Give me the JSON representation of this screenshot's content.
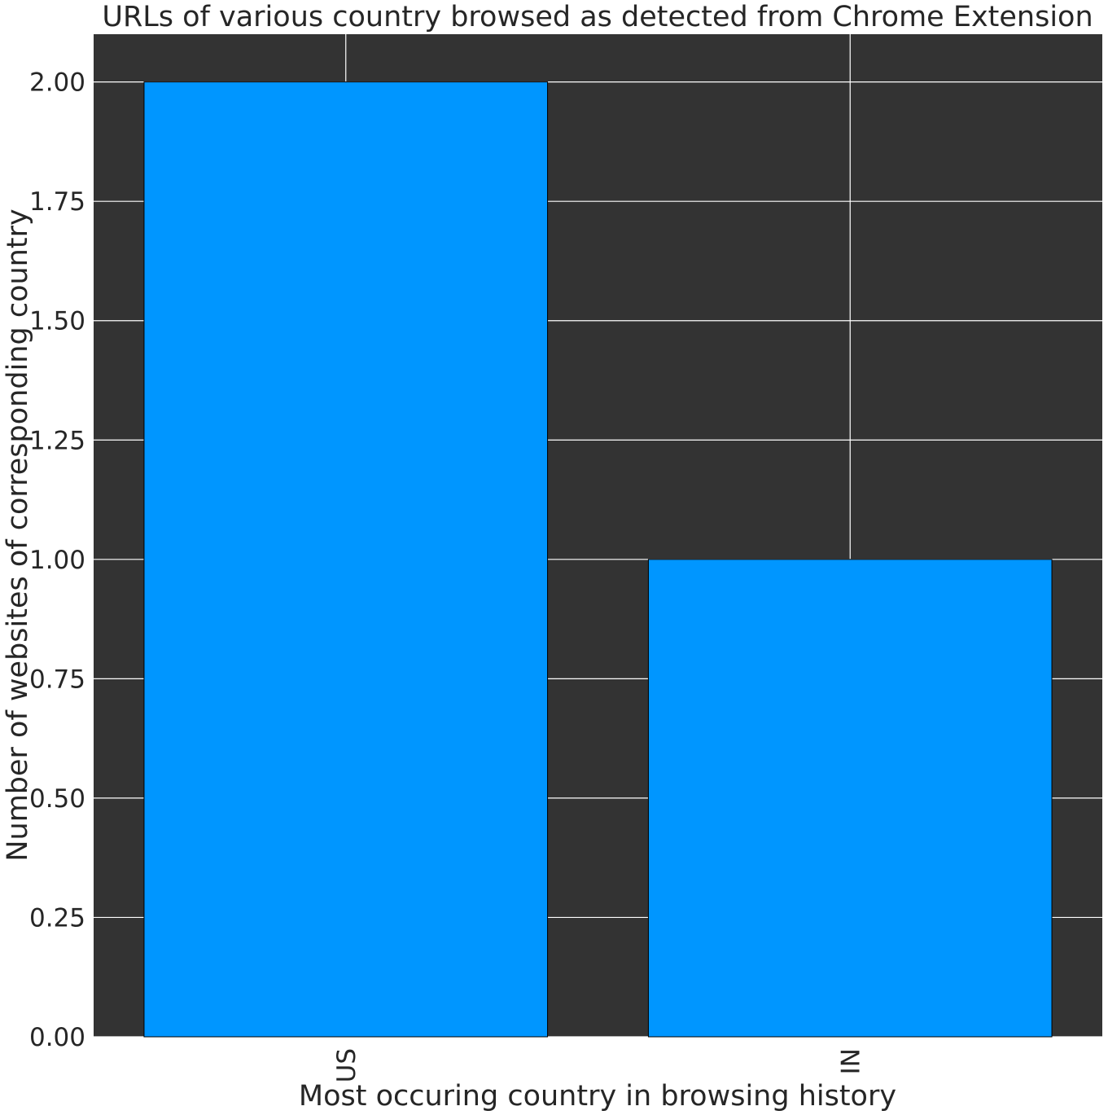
{
  "chart_data": {
    "type": "bar",
    "title": "URLs of various country browsed as detected from Chrome Extension",
    "xlabel": "Most occuring country in browsing history",
    "ylabel": "Number of websites of corresponding country",
    "categories": [
      "US",
      "IN"
    ],
    "values": [
      2,
      1
    ],
    "ylim": [
      0,
      2.1
    ],
    "yticks": [
      "0.00",
      "0.25",
      "0.50",
      "0.75",
      "1.00",
      "1.25",
      "1.50",
      "1.75",
      "2.00"
    ],
    "grid": true,
    "colors": {
      "bar": "#0096ff",
      "bar_edge": "#000000",
      "plot_background": "#333333",
      "grid": "#ffffff"
    }
  }
}
